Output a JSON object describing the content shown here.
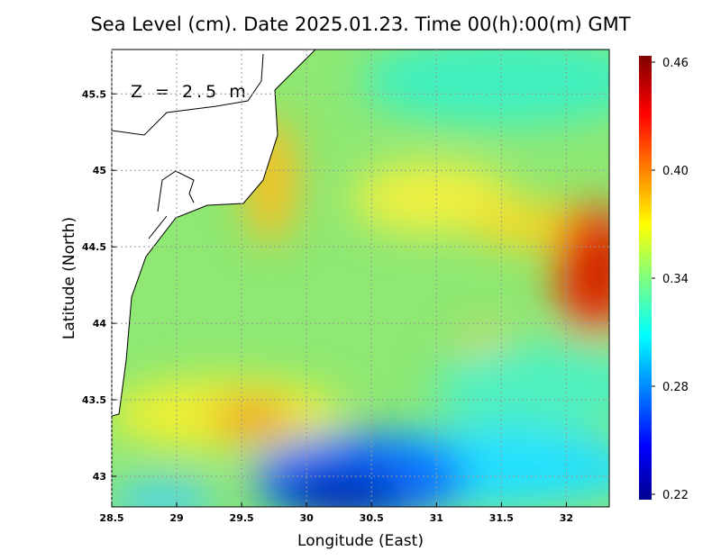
{
  "chart_data": {
    "type": "heatmap",
    "title": "Sea Level (cm). Date 2025.01.23. Time 00(h):00(m) GMT",
    "annotation": "Z = 2.5 m",
    "x_label": "Longitude (East)",
    "y_label": "Latitude (North)",
    "xlim": [
      28.5,
      32.33
    ],
    "ylim": [
      42.8,
      45.79
    ],
    "xticks": [
      28.5,
      29,
      29.5,
      30,
      30.5,
      31,
      31.5,
      32
    ],
    "yticks": [
      43,
      43.5,
      44,
      44.5,
      45,
      45.5
    ],
    "grid": true,
    "colorbar": {
      "lim": [
        0.217,
        0.4635
      ],
      "ticks": [
        0.22,
        0.28,
        0.34,
        {
          "value": 0.4,
          "label": "0.40"
        },
        0.46
      ]
    }
  }
}
